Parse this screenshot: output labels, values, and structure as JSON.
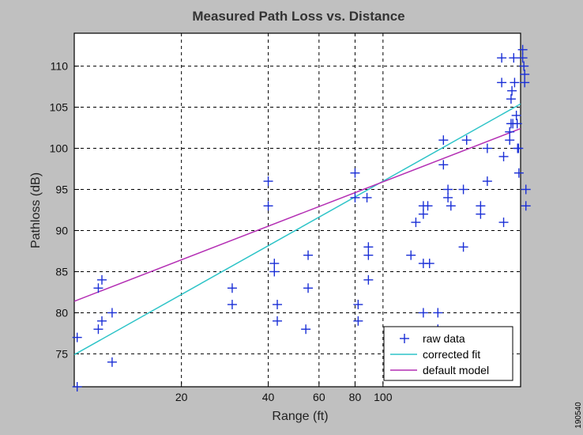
{
  "figure_id": "190540",
  "colors": {
    "background": "#c0c0c0",
    "raw": "#1a2fd6",
    "corrected": "#2ec4c8",
    "default": "#b42fb4"
  },
  "chart_data": {
    "type": "scatter",
    "title": "Measured Path Loss vs. Distance",
    "xlabel": "Range (ft)",
    "ylabel": "Pathloss (dB)",
    "xscale": "log",
    "xlim": [
      8.5,
      300
    ],
    "ylim": [
      71,
      114
    ],
    "grid": true,
    "legend_position": "bottom-right",
    "xticks": [
      20,
      40,
      60,
      80,
      100
    ],
    "xtick_labels": [
      "20",
      "40",
      "60",
      "80",
      "100"
    ],
    "yticks": [
      75,
      80,
      85,
      90,
      95,
      100,
      105,
      110
    ],
    "ytick_labels": [
      "75",
      "80",
      "85",
      "90",
      "95",
      "100",
      "105",
      "110"
    ],
    "legend": [
      "raw data",
      "corrected fit",
      "default model"
    ],
    "series": [
      {
        "name": "raw data",
        "kind": "marker",
        "marker": "+",
        "points": [
          [
            8.7,
            77
          ],
          [
            8.7,
            71
          ],
          [
            10.3,
            83
          ],
          [
            10.3,
            78
          ],
          [
            10.6,
            84
          ],
          [
            10.6,
            79
          ],
          [
            11.5,
            80
          ],
          [
            11.5,
            74
          ],
          [
            30,
            83
          ],
          [
            30,
            81
          ],
          [
            40,
            96
          ],
          [
            40,
            93
          ],
          [
            42,
            86
          ],
          [
            42,
            85
          ],
          [
            43,
            81
          ],
          [
            43,
            79
          ],
          [
            55,
            87
          ],
          [
            55,
            83
          ],
          [
            54,
            78
          ],
          [
            80,
            97
          ],
          [
            80,
            94
          ],
          [
            82,
            81
          ],
          [
            82,
            79
          ],
          [
            88,
            94
          ],
          [
            89,
            88
          ],
          [
            89,
            87
          ],
          [
            89,
            84
          ],
          [
            125,
            87
          ],
          [
            130,
            91
          ],
          [
            138,
            93
          ],
          [
            138,
            92
          ],
          [
            138,
            86
          ],
          [
            138,
            80
          ],
          [
            143,
            93
          ],
          [
            145,
            86
          ],
          [
            155,
            80
          ],
          [
            155,
            78
          ],
          [
            162,
            101
          ],
          [
            162,
            98
          ],
          [
            168,
            95
          ],
          [
            168,
            94
          ],
          [
            172,
            93
          ],
          [
            190,
            95
          ],
          [
            190,
            88
          ],
          [
            195,
            101
          ],
          [
            218,
            93
          ],
          [
            218,
            92
          ],
          [
            230,
            100
          ],
          [
            230,
            96
          ],
          [
            258,
            111
          ],
          [
            258,
            108
          ],
          [
            262,
            99
          ],
          [
            262,
            91
          ],
          [
            275,
            102
          ],
          [
            275,
            101
          ],
          [
            278,
            106
          ],
          [
            278,
            103
          ],
          [
            280,
            107
          ],
          [
            282,
            103
          ],
          [
            284,
            111
          ],
          [
            286,
            108
          ],
          [
            290,
            104
          ],
          [
            292,
            103
          ],
          [
            293,
            100
          ],
          [
            295,
            100
          ],
          [
            296,
            97
          ],
          [
            305,
            112
          ],
          [
            305,
            111
          ],
          [
            308,
            110
          ],
          [
            310,
            109
          ],
          [
            310,
            108
          ],
          [
            313,
            95
          ],
          [
            313,
            93
          ]
        ]
      },
      {
        "name": "corrected fit",
        "kind": "line",
        "points": [
          [
            8.5,
            74.9
          ],
          [
            300,
            105.4
          ]
        ]
      },
      {
        "name": "default model",
        "kind": "line",
        "points": [
          [
            8.5,
            81.4
          ],
          [
            300,
            102.4
          ]
        ]
      }
    ]
  }
}
